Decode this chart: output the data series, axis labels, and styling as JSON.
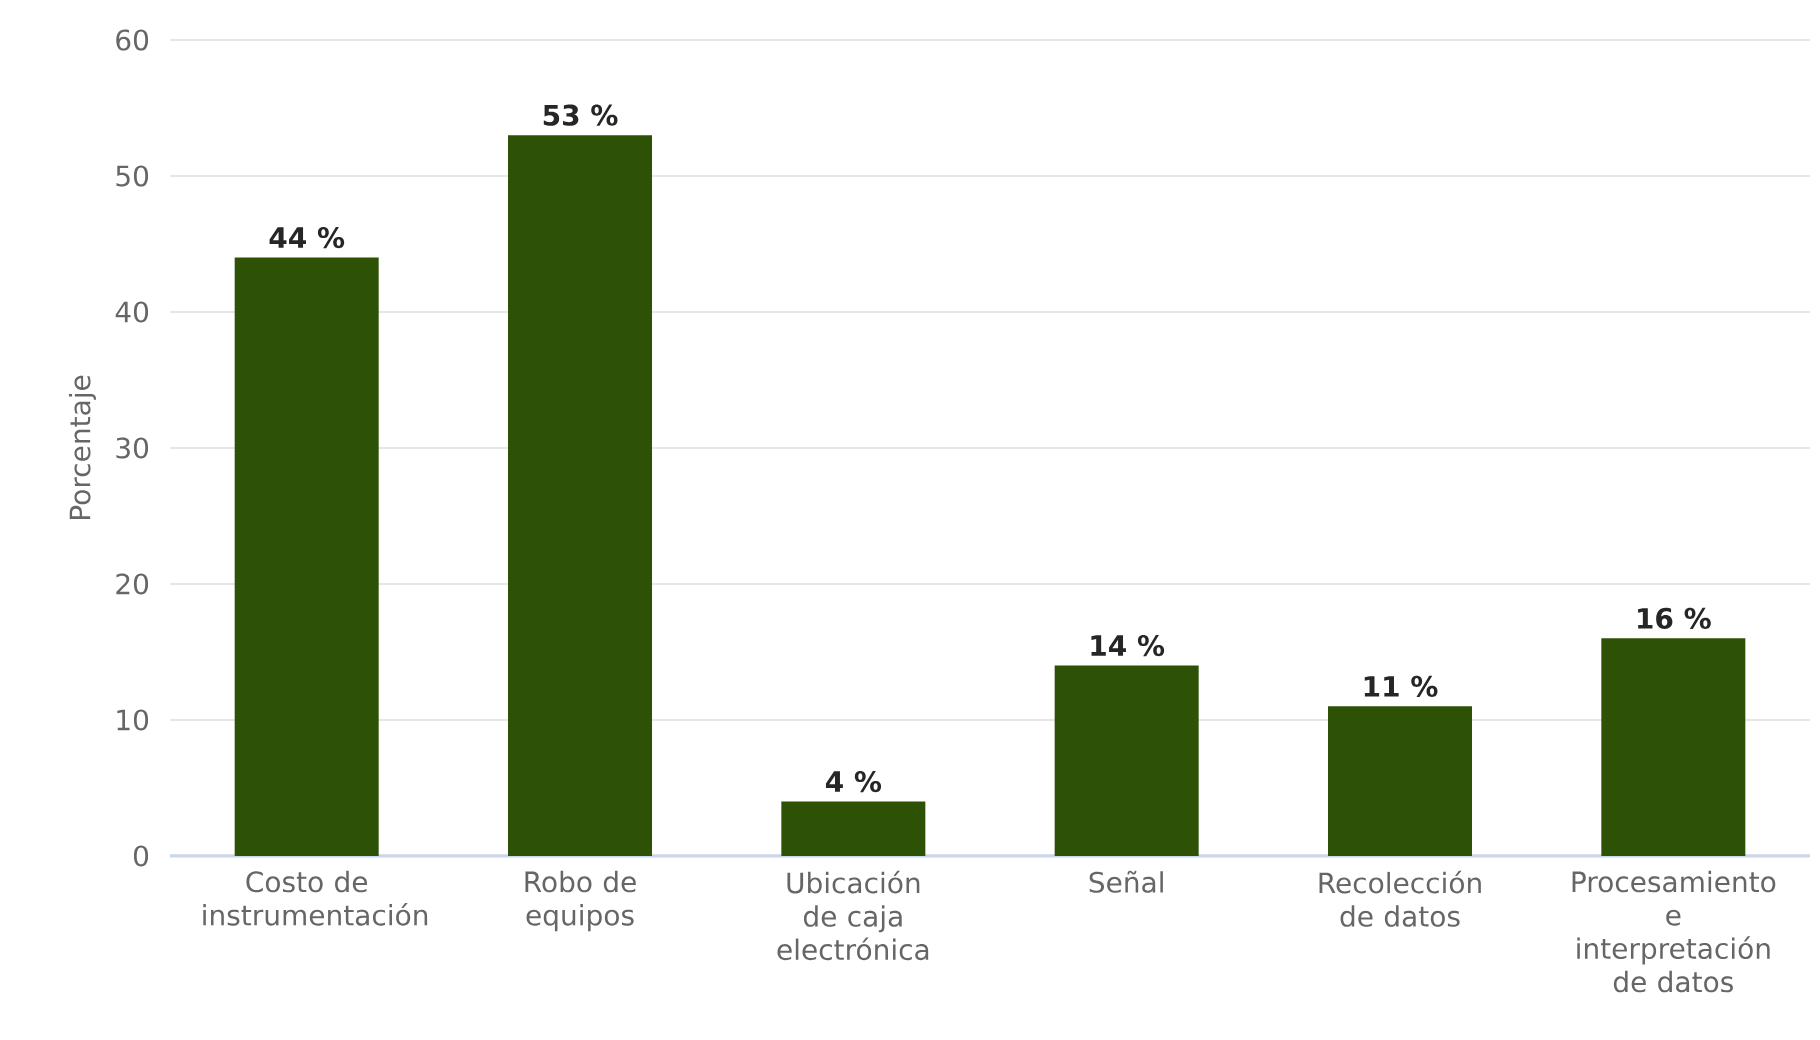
{
  "chart_data": {
    "type": "bar",
    "ylabel": "Porcentaje",
    "categories": [
      "Costo de instrumentación",
      "Robo de equipos",
      "Ubicación de caja electrónica",
      "Señal",
      "Recolección de datos",
      "Procesamiento e interpretación de datos"
    ],
    "values": [
      44,
      53,
      4,
      14,
      11,
      16
    ],
    "value_labels": [
      "44 %",
      "53 %",
      "4 %",
      "14 %",
      "11 %",
      "16 %"
    ],
    "color": "#2d5206",
    "ylim": [
      0,
      60
    ],
    "yticks": [
      0,
      10,
      20,
      30,
      40,
      50,
      60
    ],
    "grid": "y"
  }
}
